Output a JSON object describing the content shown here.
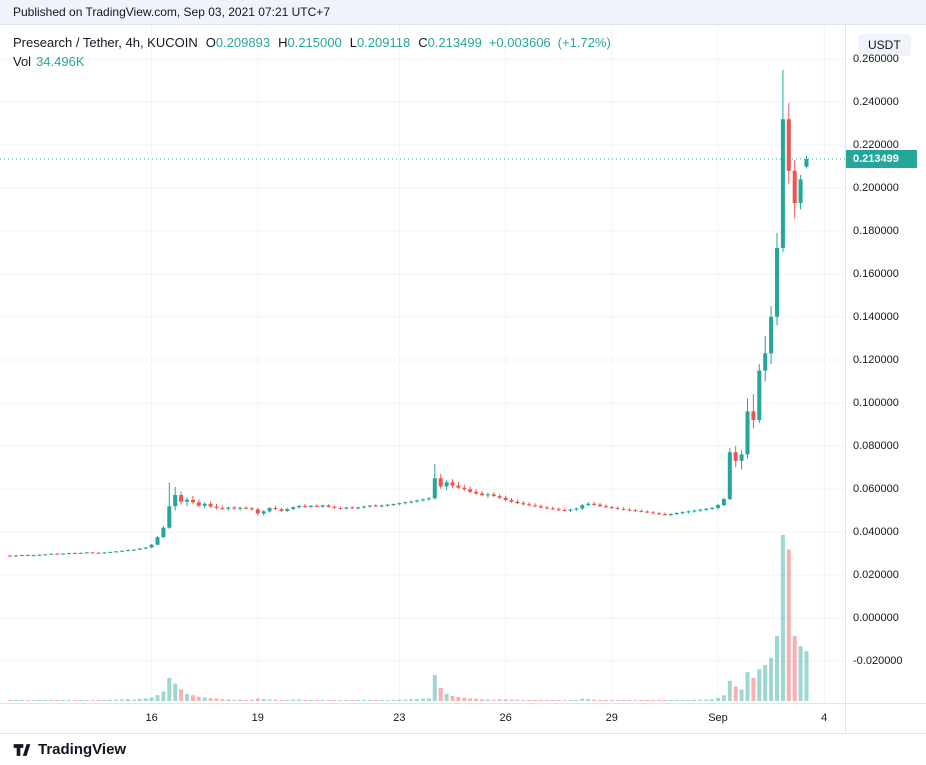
{
  "top_bar": {
    "published_text": "Published on TradingView.com, Sep 03, 2021 07:21 UTC+7"
  },
  "header": {
    "symbol_title": "Presearch / Tether, 4h, KUCOIN",
    "ohlc": {
      "open_label": "O",
      "open": "0.209893",
      "high_label": "H",
      "high": "0.215000",
      "low_label": "L",
      "low": "0.209118",
      "close_label": "C",
      "close": "0.213499",
      "change": "+0.003606",
      "change_pct": "(+1.72%)"
    },
    "volume_label": "Vol",
    "volume_value": "34.496K"
  },
  "price_axis": {
    "currency_badge": "USDT",
    "last_price": "0.213499",
    "labels": [
      {
        "text": "0.260000",
        "value": 0.26
      },
      {
        "text": "0.240000",
        "value": 0.24
      },
      {
        "text": "0.220000",
        "value": 0.22
      },
      {
        "text": "0.200000",
        "value": 0.2
      },
      {
        "text": "0.180000",
        "value": 0.18
      },
      {
        "text": "0.160000",
        "value": 0.16
      },
      {
        "text": "0.140000",
        "value": 0.14
      },
      {
        "text": "0.120000",
        "value": 0.12
      },
      {
        "text": "0.100000",
        "value": 0.1
      },
      {
        "text": "0.080000",
        "value": 0.08
      },
      {
        "text": "0.060000",
        "value": 0.06
      },
      {
        "text": "0.040000",
        "value": 0.04
      },
      {
        "text": "0.020000",
        "value": 0.02
      },
      {
        "text": "0.000000",
        "value": 0.0
      },
      {
        "text": "-0.020000",
        "value": -0.02
      }
    ]
  },
  "time_axis": {
    "labels": [
      {
        "text": "16",
        "candle_index": 24
      },
      {
        "text": "19",
        "candle_index": 42
      },
      {
        "text": "23",
        "candle_index": 66
      },
      {
        "text": "26",
        "candle_index": 84
      },
      {
        "text": "29",
        "candle_index": 102
      },
      {
        "text": "Sep",
        "candle_index": 120
      },
      {
        "text": "4",
        "candle_index": 138
      }
    ]
  },
  "footer": {
    "brand": "TradingView"
  },
  "colors": {
    "up": "#26a69a",
    "down": "#ef5350",
    "volume_up": "rgba(38,166,154,0.45)",
    "volume_down": "rgba(239,83,80,0.45)",
    "accent_text": "#26a69a",
    "grid": "#f0f3fa",
    "axis_text": "#131722",
    "border": "#e0e3eb",
    "badge_bg": "#f0f3fa",
    "price_tag_bg": "#26a69a"
  },
  "chart_data": {
    "type": "candlestick",
    "title": "Presearch / Tether, 4h, KUCOIN",
    "symbol": "Presearch / Tether",
    "interval": "4h",
    "exchange": "KUCOIN",
    "quote_currency": "USDT",
    "axis": {
      "max": 0.26,
      "min": -0.02,
      "step": 0.02
    },
    "volume_axis_max_k": 115,
    "last_price": 0.213499,
    "ohlc_current": {
      "open": 0.209893,
      "high": 0.215,
      "low": 0.209118,
      "close": 0.213499,
      "change": 0.003606,
      "change_pct": 1.72,
      "volume_k": 34.496
    },
    "legend_note": "candles = [open, high, low, close, volume_in_K], 4h bars from Aug 12 to Sep 3 2021",
    "candles": [
      [
        0.029,
        0.0294,
        0.0286,
        0.0289,
        0.5
      ],
      [
        0.0289,
        0.0293,
        0.0285,
        0.0291,
        0.4
      ],
      [
        0.0291,
        0.0295,
        0.0288,
        0.0293,
        0.6
      ],
      [
        0.0293,
        0.0296,
        0.0288,
        0.029,
        0.3
      ],
      [
        0.029,
        0.0294,
        0.0287,
        0.0292,
        0.5
      ],
      [
        0.0292,
        0.0296,
        0.0289,
        0.0294,
        0.7
      ],
      [
        0.0294,
        0.0298,
        0.0291,
        0.0296,
        0.5
      ],
      [
        0.0296,
        0.03,
        0.0293,
        0.0299,
        0.6
      ],
      [
        0.0299,
        0.0302,
        0.0295,
        0.0297,
        0.4
      ],
      [
        0.0297,
        0.0301,
        0.0294,
        0.03,
        0.5
      ],
      [
        0.03,
        0.0304,
        0.0297,
        0.0302,
        0.8
      ],
      [
        0.0302,
        0.0305,
        0.0298,
        0.0301,
        0.6
      ],
      [
        0.0301,
        0.0305,
        0.0298,
        0.0303,
        0.5
      ],
      [
        0.0303,
        0.0307,
        0.03,
        0.0305,
        0.7
      ],
      [
        0.0305,
        0.0308,
        0.0301,
        0.0304,
        0.4
      ],
      [
        0.0304,
        0.0306,
        0.0299,
        0.0302,
        0.3
      ],
      [
        0.0302,
        0.0306,
        0.0299,
        0.0305,
        0.6
      ],
      [
        0.0305,
        0.0309,
        0.0302,
        0.0307,
        0.8
      ],
      [
        0.0307,
        0.0311,
        0.0304,
        0.031,
        0.9
      ],
      [
        0.031,
        0.0315,
        0.0307,
        0.0313,
        1.1
      ],
      [
        0.0313,
        0.0318,
        0.031,
        0.0316,
        1.3
      ],
      [
        0.0316,
        0.032,
        0.0312,
        0.0318,
        1.0
      ],
      [
        0.0318,
        0.0325,
        0.0315,
        0.0323,
        1.5
      ],
      [
        0.0323,
        0.033,
        0.0319,
        0.0328,
        1.8
      ],
      [
        0.0328,
        0.0345,
        0.0325,
        0.0341,
        2.5
      ],
      [
        0.0341,
        0.0382,
        0.0338,
        0.0376,
        4.0
      ],
      [
        0.0376,
        0.0428,
        0.0372,
        0.042,
        6.5
      ],
      [
        0.042,
        0.063,
        0.0415,
        0.052,
        16.0
      ],
      [
        0.052,
        0.061,
        0.05,
        0.0572,
        12.0
      ],
      [
        0.0572,
        0.0588,
        0.0528,
        0.0541,
        8.0
      ],
      [
        0.0541,
        0.0562,
        0.052,
        0.055,
        5.0
      ],
      [
        0.055,
        0.0568,
        0.0531,
        0.0538,
        4.0
      ],
      [
        0.0538,
        0.0552,
        0.0515,
        0.0522,
        3.0
      ],
      [
        0.0522,
        0.054,
        0.051,
        0.0531,
        2.5
      ],
      [
        0.0531,
        0.0542,
        0.0512,
        0.0518,
        2.0
      ],
      [
        0.0518,
        0.053,
        0.0505,
        0.0512,
        1.8
      ],
      [
        0.0512,
        0.0524,
        0.0502,
        0.0508,
        1.2
      ],
      [
        0.0508,
        0.0518,
        0.0498,
        0.0514,
        1.0
      ],
      [
        0.0514,
        0.0521,
        0.0504,
        0.0509,
        0.8
      ],
      [
        0.0509,
        0.0517,
        0.05,
        0.0513,
        0.9
      ],
      [
        0.0513,
        0.052,
        0.0505,
        0.051,
        0.7
      ],
      [
        0.051,
        0.0516,
        0.0499,
        0.0505,
        0.8
      ],
      [
        0.0505,
        0.0512,
        0.0478,
        0.0486,
        1.6
      ],
      [
        0.0486,
        0.0501,
        0.0476,
        0.0496,
        1.3
      ],
      [
        0.0496,
        0.0516,
        0.049,
        0.0511,
        1.1
      ],
      [
        0.0511,
        0.0523,
        0.0501,
        0.0506,
        0.9
      ],
      [
        0.0506,
        0.0513,
        0.0492,
        0.0498,
        0.8
      ],
      [
        0.0498,
        0.0511,
        0.0493,
        0.0507,
        0.7
      ],
      [
        0.0507,
        0.0519,
        0.0501,
        0.0515,
        0.9
      ],
      [
        0.0515,
        0.0526,
        0.0509,
        0.0521,
        1.0
      ],
      [
        0.0521,
        0.0531,
        0.0512,
        0.0517,
        0.8
      ],
      [
        0.0517,
        0.0525,
        0.051,
        0.0522,
        0.7
      ],
      [
        0.0522,
        0.0529,
        0.0515,
        0.0518,
        0.6
      ],
      [
        0.0518,
        0.0527,
        0.0512,
        0.0524,
        0.8
      ],
      [
        0.0524,
        0.0529,
        0.0513,
        0.0517,
        0.7
      ],
      [
        0.0517,
        0.0523,
        0.0508,
        0.0512,
        0.6
      ],
      [
        0.0512,
        0.0519,
        0.0505,
        0.0509,
        0.5
      ],
      [
        0.0509,
        0.0517,
        0.0503,
        0.0514,
        0.6
      ],
      [
        0.0514,
        0.052,
        0.0507,
        0.051,
        0.5
      ],
      [
        0.051,
        0.0518,
        0.0504,
        0.0515,
        0.6
      ],
      [
        0.0515,
        0.0522,
        0.0509,
        0.0519,
        0.6
      ],
      [
        0.0519,
        0.0526,
        0.0513,
        0.0523,
        0.7
      ],
      [
        0.0523,
        0.0529,
        0.0516,
        0.052,
        0.5
      ],
      [
        0.052,
        0.0527,
        0.0514,
        0.0524,
        0.6
      ],
      [
        0.0524,
        0.0531,
        0.0518,
        0.0527,
        0.7
      ],
      [
        0.0527,
        0.0533,
        0.0521,
        0.053,
        0.8
      ],
      [
        0.053,
        0.0537,
        0.0524,
        0.0534,
        0.9
      ],
      [
        0.0534,
        0.0541,
        0.0528,
        0.0538,
        1.0
      ],
      [
        0.0538,
        0.0546,
        0.0532,
        0.0542,
        1.2
      ],
      [
        0.0542,
        0.0551,
        0.0536,
        0.0547,
        1.4
      ],
      [
        0.0547,
        0.0556,
        0.0541,
        0.0552,
        1.6
      ],
      [
        0.0552,
        0.0561,
        0.0546,
        0.0557,
        1.8
      ],
      [
        0.0557,
        0.0715,
        0.0551,
        0.065,
        18.0
      ],
      [
        0.065,
        0.0669,
        0.0601,
        0.0612,
        9.0
      ],
      [
        0.0612,
        0.0641,
        0.0596,
        0.0631,
        5.0
      ],
      [
        0.0631,
        0.0646,
        0.0606,
        0.0616,
        3.5
      ],
      [
        0.0616,
        0.0633,
        0.0599,
        0.0606,
        2.8
      ],
      [
        0.0606,
        0.0621,
        0.0591,
        0.0599,
        2.2
      ],
      [
        0.0599,
        0.0611,
        0.0581,
        0.0587,
        1.8
      ],
      [
        0.0587,
        0.0599,
        0.0573,
        0.0579,
        1.5
      ],
      [
        0.0579,
        0.0591,
        0.0566,
        0.0571,
        1.2
      ],
      [
        0.0571,
        0.0583,
        0.0559,
        0.0575,
        1.0
      ],
      [
        0.0575,
        0.0585,
        0.0563,
        0.0567,
        0.9
      ],
      [
        0.0567,
        0.0577,
        0.0553,
        0.0559,
        1.1
      ],
      [
        0.0559,
        0.0569,
        0.0543,
        0.0549,
        1.2
      ],
      [
        0.0549,
        0.0559,
        0.0536,
        0.0541,
        0.9
      ],
      [
        0.0541,
        0.0551,
        0.0529,
        0.0534,
        0.8
      ],
      [
        0.0534,
        0.0544,
        0.0523,
        0.0529,
        0.7
      ],
      [
        0.0529,
        0.0539,
        0.0519,
        0.0524,
        0.6
      ],
      [
        0.0524,
        0.0533,
        0.0515,
        0.052,
        0.6
      ],
      [
        0.052,
        0.0528,
        0.0509,
        0.0514,
        0.5
      ],
      [
        0.0514,
        0.0522,
        0.0505,
        0.051,
        0.5
      ],
      [
        0.051,
        0.0518,
        0.0501,
        0.0506,
        0.4
      ],
      [
        0.0506,
        0.0514,
        0.0498,
        0.0502,
        0.5
      ],
      [
        0.0502,
        0.051,
        0.0495,
        0.0499,
        0.4
      ],
      [
        0.0499,
        0.0507,
        0.0492,
        0.0504,
        0.5
      ],
      [
        0.0504,
        0.0513,
        0.0497,
        0.0509,
        0.7
      ],
      [
        0.0509,
        0.0531,
        0.0503,
        0.0525,
        1.6
      ],
      [
        0.0525,
        0.0539,
        0.0519,
        0.0531,
        1.3
      ],
      [
        0.0531,
        0.0541,
        0.0521,
        0.0527,
        0.9
      ],
      [
        0.0527,
        0.0535,
        0.0515,
        0.052,
        0.7
      ],
      [
        0.052,
        0.0528,
        0.0511,
        0.0516,
        0.6
      ],
      [
        0.0516,
        0.0523,
        0.0507,
        0.0512,
        0.5
      ],
      [
        0.0512,
        0.0519,
        0.0504,
        0.0508,
        0.5
      ],
      [
        0.0508,
        0.0515,
        0.05,
        0.0504,
        0.4
      ],
      [
        0.0504,
        0.0511,
        0.0497,
        0.0501,
        0.4
      ],
      [
        0.0501,
        0.0508,
        0.0494,
        0.0498,
        0.5
      ],
      [
        0.0498,
        0.0505,
        0.0491,
        0.0495,
        0.4
      ],
      [
        0.0495,
        0.0502,
        0.0487,
        0.0491,
        0.5
      ],
      [
        0.0491,
        0.0498,
        0.0483,
        0.0487,
        0.4
      ],
      [
        0.0487,
        0.0494,
        0.0479,
        0.0483,
        0.4
      ],
      [
        0.0483,
        0.0491,
        0.0476,
        0.048,
        0.5
      ],
      [
        0.048,
        0.0488,
        0.0473,
        0.0484,
        0.4
      ],
      [
        0.0484,
        0.0492,
        0.0478,
        0.0488,
        0.5
      ],
      [
        0.0488,
        0.0496,
        0.0482,
        0.0492,
        0.6
      ],
      [
        0.0492,
        0.05,
        0.0486,
        0.0496,
        0.7
      ],
      [
        0.0496,
        0.0504,
        0.049,
        0.05,
        0.8
      ],
      [
        0.05,
        0.0508,
        0.0494,
        0.0504,
        0.9
      ],
      [
        0.0504,
        0.0512,
        0.0498,
        0.0508,
        1.0
      ],
      [
        0.0508,
        0.0516,
        0.0502,
        0.0512,
        1.2
      ],
      [
        0.0512,
        0.0531,
        0.0506,
        0.0525,
        2.0
      ],
      [
        0.0525,
        0.0561,
        0.0519,
        0.0553,
        4.0
      ],
      [
        0.0553,
        0.0791,
        0.0549,
        0.0771,
        14.0
      ],
      [
        0.0771,
        0.0801,
        0.0701,
        0.0731,
        10.0
      ],
      [
        0.0731,
        0.0781,
        0.0691,
        0.0761,
        8.0
      ],
      [
        0.0761,
        0.1021,
        0.0741,
        0.0961,
        20.0
      ],
      [
        0.0961,
        0.1041,
        0.0881,
        0.0921,
        16.0
      ],
      [
        0.0921,
        0.1181,
        0.0906,
        0.1151,
        22.0
      ],
      [
        0.1151,
        0.1311,
        0.1101,
        0.1231,
        25.0
      ],
      [
        0.1231,
        0.1451,
        0.1181,
        0.1401,
        30.0
      ],
      [
        0.1401,
        0.1791,
        0.1361,
        0.1721,
        45.0
      ],
      [
        0.1721,
        0.255,
        0.1701,
        0.232,
        115.0
      ],
      [
        0.232,
        0.2395,
        0.202,
        0.208,
        105.0
      ],
      [
        0.208,
        0.213,
        0.186,
        0.193,
        45.0
      ],
      [
        0.193,
        0.206,
        0.19,
        0.204,
        38.0
      ],
      [
        0.209893,
        0.215,
        0.209118,
        0.213499,
        34.496
      ]
    ]
  }
}
